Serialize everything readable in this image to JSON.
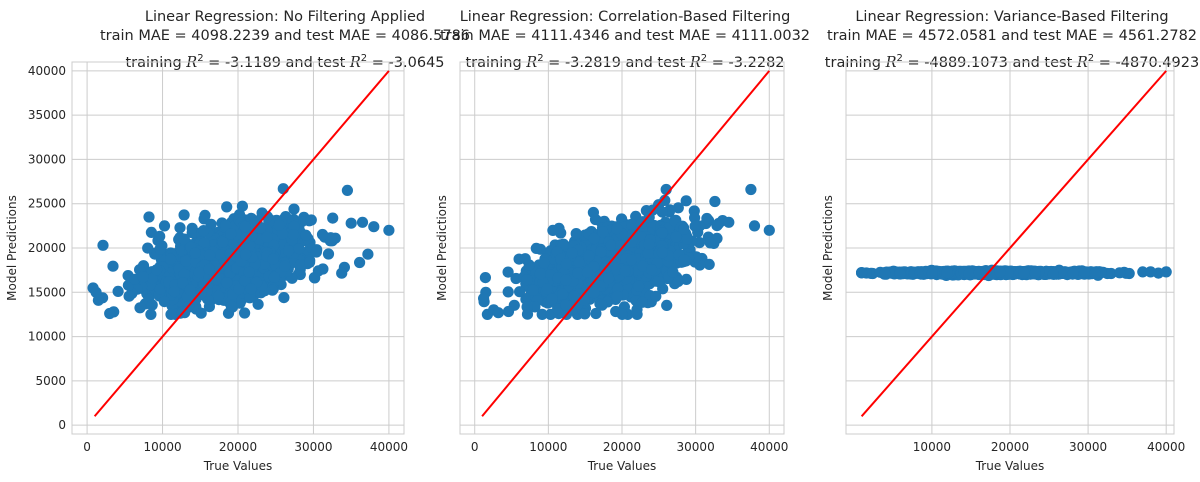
{
  "chart_data": [
    {
      "type": "scatter",
      "title": "Linear Regression: No Filtering Applied",
      "subtitle_mae": "train MAE = 4098.2239 and test MAE = 4086.5786",
      "subtitle_r2_prefix": "training",
      "subtitle_r2_train": "-3.1189",
      "subtitle_r2_test": "-3.0645",
      "r2_symbol": "R",
      "r2_exponent": "2",
      "xlabel": "True Values",
      "ylabel": "Model Predictions",
      "xlim": [
        -2000,
        42000
      ],
      "ylim": [
        -1000,
        41000
      ],
      "xticks": [
        0,
        10000,
        20000,
        30000,
        40000
      ],
      "yticks": [
        0,
        5000,
        10000,
        15000,
        20000,
        25000,
        30000,
        35000,
        40000
      ],
      "show_yticklabels": true,
      "grid": true,
      "point_color": "#1f77b4",
      "reference_line": {
        "from": [
          1000,
          1000
        ],
        "to": [
          40000,
          40000
        ],
        "color": "#ff0000"
      },
      "cloud": {
        "x_center": 18500,
        "x_sd": 5200,
        "x_range": [
          800,
          40000
        ],
        "y_center": 18300,
        "y_slope": 0.2,
        "y_sd": 2000,
        "y_range": [
          12500,
          26700
        ]
      },
      "outliers": [
        [
          8200,
          23500
        ],
        [
          34500,
          26500
        ],
        [
          38000,
          22400
        ],
        [
          40000,
          22000
        ],
        [
          35000,
          22800
        ],
        [
          26000,
          26700
        ],
        [
          36500,
          22900
        ],
        [
          1200,
          15000
        ],
        [
          1500,
          14100
        ],
        [
          3000,
          12600
        ]
      ]
    },
    {
      "type": "scatter",
      "title": "Linear Regression: Correlation-Based Filtering",
      "subtitle_mae": "train MAE = 4111.4346 and test MAE = 4111.0032",
      "subtitle_r2_prefix": "training",
      "subtitle_r2_train": "-3.2819",
      "subtitle_r2_test": "-3.2282",
      "r2_symbol": "R",
      "r2_exponent": "2",
      "xlabel": "True Values",
      "ylabel": "Model Predictions",
      "xlim": [
        -2000,
        42000
      ],
      "ylim": [
        -1000,
        41000
      ],
      "xticks": [
        0,
        10000,
        20000,
        30000,
        40000
      ],
      "yticks": [
        0,
        5000,
        10000,
        15000,
        20000,
        25000,
        30000,
        35000,
        40000
      ],
      "show_yticklabels": false,
      "grid": true,
      "point_color": "#1f77b4",
      "reference_line": {
        "from": [
          1000,
          1000
        ],
        "to": [
          40000,
          40000
        ],
        "color": "#ff0000"
      },
      "cloud": {
        "x_center": 18500,
        "x_sd": 5200,
        "x_range": [
          800,
          40000
        ],
        "y_center": 18200,
        "y_slope": 0.2,
        "y_sd": 2000,
        "y_range": [
          12500,
          26600
        ]
      },
      "outliers": [
        [
          37500,
          26600
        ],
        [
          38000,
          22500
        ],
        [
          40000,
          22000
        ],
        [
          34500,
          22900
        ],
        [
          26000,
          26600
        ],
        [
          1500,
          15000
        ],
        [
          1200,
          14300
        ],
        [
          3200,
          12700
        ]
      ]
    },
    {
      "type": "scatter",
      "title": "Linear Regression: Variance-Based Filtering",
      "subtitle_mae": "train MAE = 4572.0581 and test MAE = 4561.2782",
      "subtitle_r2_prefix": "training",
      "subtitle_r2_train": "-4889.1073",
      "subtitle_r2_test": "-4870.4923",
      "r2_symbol": "R",
      "r2_exponent": "2",
      "xlabel": "True Values",
      "ylabel": "Model Predictions",
      "xlim": [
        -1000,
        41000
      ],
      "ylim": [
        -1000,
        41000
      ],
      "xticks": [
        10000,
        20000,
        30000,
        40000
      ],
      "yticks": [
        0,
        5000,
        10000,
        15000,
        20000,
        25000,
        30000,
        35000,
        40000
      ],
      "show_yticklabels": false,
      "grid": true,
      "point_color": "#1f77b4",
      "reference_line": {
        "from": [
          1000,
          1000
        ],
        "to": [
          40000,
          40000
        ],
        "color": "#ff0000"
      },
      "cloud": {
        "x_center": 18000,
        "x_sd": 6000,
        "x_range": [
          1000,
          39000
        ],
        "y_center": 17200,
        "y_slope": 0.0,
        "y_sd": 90,
        "y_range": [
          16900,
          17500
        ]
      },
      "outliers": [
        [
          1000,
          17200
        ],
        [
          37000,
          17300
        ],
        [
          38000,
          17300
        ],
        [
          40000,
          17300
        ]
      ]
    }
  ]
}
